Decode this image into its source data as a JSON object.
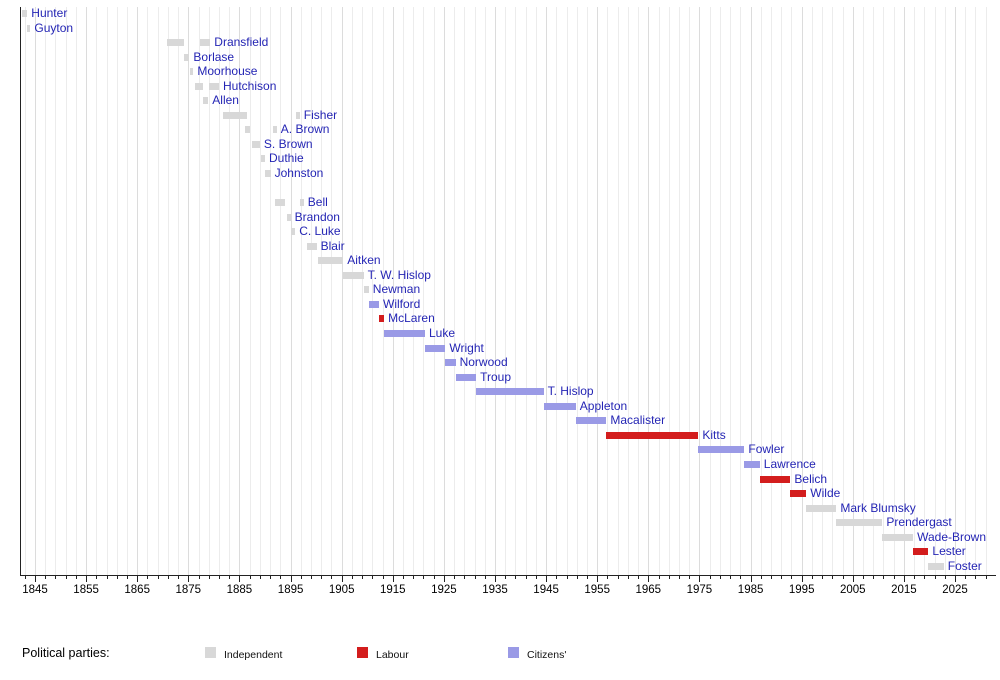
{
  "chart_data": {
    "type": "bar",
    "subtype": "timeline-gantt",
    "description_visible_text_only": true,
    "x_axis": {
      "tick_start": 1845,
      "tick_end": 2025,
      "tick_interval": 10,
      "minor_tick_interval": 2,
      "tick_labels": [
        "1845",
        "1855",
        "1865",
        "1875",
        "1885",
        "1895",
        "1905",
        "1915",
        "1925",
        "1935",
        "1945",
        "1955",
        "1965",
        "1975",
        "1985",
        "1995",
        "2005",
        "2015",
        "2025"
      ],
      "range": [
        1842.1,
        2032.5
      ],
      "grid": true
    },
    "party_colors": {
      "Independent": "#d8d8d8",
      "Labour": "#d31d1d",
      "Citizens'": "#9a9ae6"
    },
    "label_link_color": "#2425b4",
    "axis_color": "#222222",
    "grid_minor_color": "#ececec",
    "grid_major_color": "#dcdcdc",
    "rows": [
      {
        "label": "Hunter",
        "party": "Independent",
        "terms": [
          [
            1842.5,
            1843.5
          ]
        ]
      },
      {
        "label": "Guyton",
        "party": "Independent",
        "terms": [
          [
            1843.5,
            1844.1
          ]
        ]
      },
      {
        "label": "Dransfield",
        "party": "Independent",
        "terms": [
          [
            1870.9,
            1874.2
          ],
          [
            1877.3,
            1879.3
          ]
        ]
      },
      {
        "label": "Borlase",
        "party": "Independent",
        "terms": [
          [
            1874.2,
            1875.2
          ]
        ]
      },
      {
        "label": "Moorhouse",
        "party": "Independent",
        "terms": [
          [
            1875.3,
            1876.0
          ]
        ]
      },
      {
        "label": "Hutchison",
        "party": "Independent",
        "terms": [
          [
            1876.2,
            1877.8
          ],
          [
            1879.1,
            1881.0
          ]
        ]
      },
      {
        "label": "Allen",
        "party": "Independent",
        "terms": [
          [
            1877.9,
            1878.9
          ]
        ]
      },
      {
        "label": "Fisher",
        "party": "Independent",
        "terms": [
          [
            1881.8,
            1886.5
          ],
          [
            1896.0,
            1896.8
          ]
        ]
      },
      {
        "label": "A. Brown",
        "party": "Independent",
        "terms": [
          [
            1886.1,
            1887.1
          ],
          [
            1891.5,
            1892.3
          ]
        ]
      },
      {
        "label": "S. Brown",
        "party": "Independent",
        "terms": [
          [
            1887.4,
            1889.0
          ]
        ]
      },
      {
        "label": "Duthie",
        "party": "Independent",
        "terms": [
          [
            1889.2,
            1890.0
          ]
        ]
      },
      {
        "label": "Johnston",
        "party": "Independent",
        "terms": [
          [
            1890.0,
            1891.1
          ]
        ]
      },
      {
        "label": "",
        "party": null,
        "terms": []
      },
      {
        "label": "Bell",
        "party": "Independent",
        "terms": [
          [
            1892.0,
            1893.9
          ],
          [
            1896.8,
            1897.6
          ]
        ]
      },
      {
        "label": "Brandon",
        "party": "Independent",
        "terms": [
          [
            1894.2,
            1895.0
          ]
        ]
      },
      {
        "label": "C. Luke",
        "party": "Independent",
        "terms": [
          [
            1895.0,
            1895.9
          ]
        ]
      },
      {
        "label": "Blair",
        "party": "Independent",
        "terms": [
          [
            1898.2,
            1900.1
          ]
        ]
      },
      {
        "label": "Aitken",
        "party": "Independent",
        "terms": [
          [
            1900.3,
            1905.3
          ]
        ]
      },
      {
        "label": "T. W. Hislop",
        "party": "Independent",
        "terms": [
          [
            1905.3,
            1909.3
          ]
        ]
      },
      {
        "label": "Newman",
        "party": "Independent",
        "terms": [
          [
            1909.3,
            1910.3
          ]
        ]
      },
      {
        "label": "Wilford",
        "party": "Citizens'",
        "terms": [
          [
            1910.3,
            1912.3
          ]
        ]
      },
      {
        "label": "McLaren",
        "party": "Labour",
        "terms": [
          [
            1912.3,
            1913.3
          ]
        ]
      },
      {
        "label": "Luke",
        "party": "Citizens'",
        "terms": [
          [
            1913.3,
            1921.3
          ]
        ]
      },
      {
        "label": "Wright",
        "party": "Citizens'",
        "terms": [
          [
            1921.3,
            1925.3
          ]
        ]
      },
      {
        "label": "Norwood",
        "party": "Citizens'",
        "terms": [
          [
            1925.3,
            1927.3
          ]
        ]
      },
      {
        "label": "Troup",
        "party": "Citizens'",
        "terms": [
          [
            1927.3,
            1931.3
          ]
        ]
      },
      {
        "label": "T. Hislop",
        "party": "Citizens'",
        "terms": [
          [
            1931.3,
            1944.5
          ]
        ]
      },
      {
        "label": "Appleton",
        "party": "Citizens'",
        "terms": [
          [
            1944.5,
            1950.8
          ]
        ]
      },
      {
        "label": "Macalister",
        "party": "Citizens'",
        "terms": [
          [
            1950.8,
            1956.8
          ]
        ]
      },
      {
        "label": "Kitts",
        "party": "Labour",
        "terms": [
          [
            1956.8,
            1974.8
          ]
        ]
      },
      {
        "label": "Fowler",
        "party": "Citizens'",
        "terms": [
          [
            1974.8,
            1983.8
          ]
        ]
      },
      {
        "label": "Lawrence",
        "party": "Citizens'",
        "terms": [
          [
            1983.8,
            1986.8
          ]
        ]
      },
      {
        "label": "Belich",
        "party": "Labour",
        "terms": [
          [
            1986.8,
            1992.8
          ]
        ]
      },
      {
        "label": "Wilde",
        "party": "Labour",
        "terms": [
          [
            1992.8,
            1995.9
          ]
        ]
      },
      {
        "label": "Mark Blumsky",
        "party": "Independent",
        "terms": [
          [
            1995.9,
            2001.8
          ]
        ]
      },
      {
        "label": "Prendergast",
        "party": "Independent",
        "terms": [
          [
            2001.8,
            2010.8
          ]
        ]
      },
      {
        "label": "Wade-Brown",
        "party": "Independent",
        "terms": [
          [
            2010.8,
            2016.8
          ]
        ]
      },
      {
        "label": "Lester",
        "party": "Labour",
        "terms": [
          [
            2016.8,
            2019.8
          ]
        ]
      },
      {
        "label": "Foster",
        "party": "Independent",
        "terms": [
          [
            2019.8,
            2022.8
          ]
        ]
      }
    ],
    "legend": {
      "label": "Political parties:",
      "entries": [
        {
          "name": "Independent",
          "color": "#d8d8d8"
        },
        {
          "name": "Labour",
          "color": "#d31d1d"
        },
        {
          "name": "Citizens'",
          "color": "#9a9ae6"
        }
      ]
    }
  }
}
